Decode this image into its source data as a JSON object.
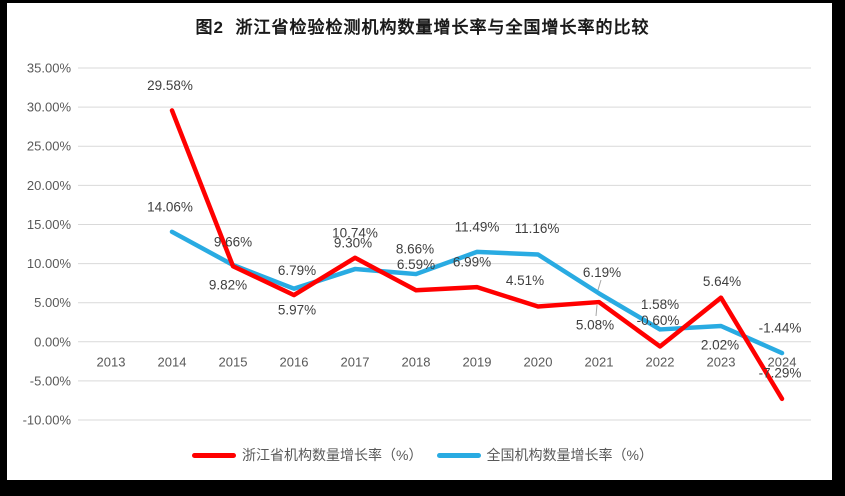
{
  "window": {
    "frame_color": "#000000",
    "panel_color": "#ffffff"
  },
  "title": "图2  浙江省检验检测机构数量增长率与全国增长率的比较",
  "chart_data": {
    "type": "line",
    "title": "图2  浙江省检验检测机构数量增长率与全国增长率的比较",
    "categories": [
      "2013",
      "2014",
      "2015",
      "2016",
      "2017",
      "2018",
      "2019",
      "2020",
      "2021",
      "2022",
      "2023",
      "2024"
    ],
    "xlabel": "",
    "ylabel": "",
    "ylim": [
      -10,
      35
    ],
    "grid": true,
    "legend_position": "bottom",
    "y_axis": {
      "unit": "%",
      "tick_values": [
        35,
        30,
        25,
        20,
        15,
        10,
        5,
        0,
        -5,
        -10
      ],
      "tick_labels": [
        "35.00%",
        "30.00%",
        "25.00%",
        "20.00%",
        "15.00%",
        "10.00%",
        "5.00%",
        "0.00%",
        "-5.00%",
        "-10.00%"
      ]
    },
    "series": [
      {
        "name": "浙江省机构数量增长率（%）",
        "color": "#FF0000",
        "values": [
          null,
          29.58,
          9.66,
          5.97,
          10.74,
          6.59,
          6.99,
          4.51,
          5.08,
          -0.6,
          5.64,
          -7.29
        ],
        "labels": [
          null,
          "29.58%",
          "9.66%",
          "5.97%",
          "10.74%",
          "6.59%",
          "6.99%",
          "4.51%",
          "5.08%",
          "-0.60%",
          "5.64%",
          "-7.29%"
        ]
      },
      {
        "name": "全国机构数量增长率（%）",
        "color": "#29ABE2",
        "values": [
          null,
          14.06,
          9.82,
          6.79,
          9.3,
          8.66,
          11.49,
          11.16,
          6.19,
          1.58,
          2.02,
          -1.44
        ],
        "labels": [
          null,
          "14.06%",
          "9.82%",
          "6.79%",
          "9.30%",
          "8.66%",
          "11.49%",
          "11.16%",
          "6.19%",
          "1.58%",
          "2.02%",
          "-1.44%"
        ]
      }
    ],
    "colors": {
      "gridline": "#D9D9D9",
      "axis_text": "#595959",
      "data_label_text": "#3F3F3F",
      "leader_line": "#A6A6A6"
    }
  }
}
